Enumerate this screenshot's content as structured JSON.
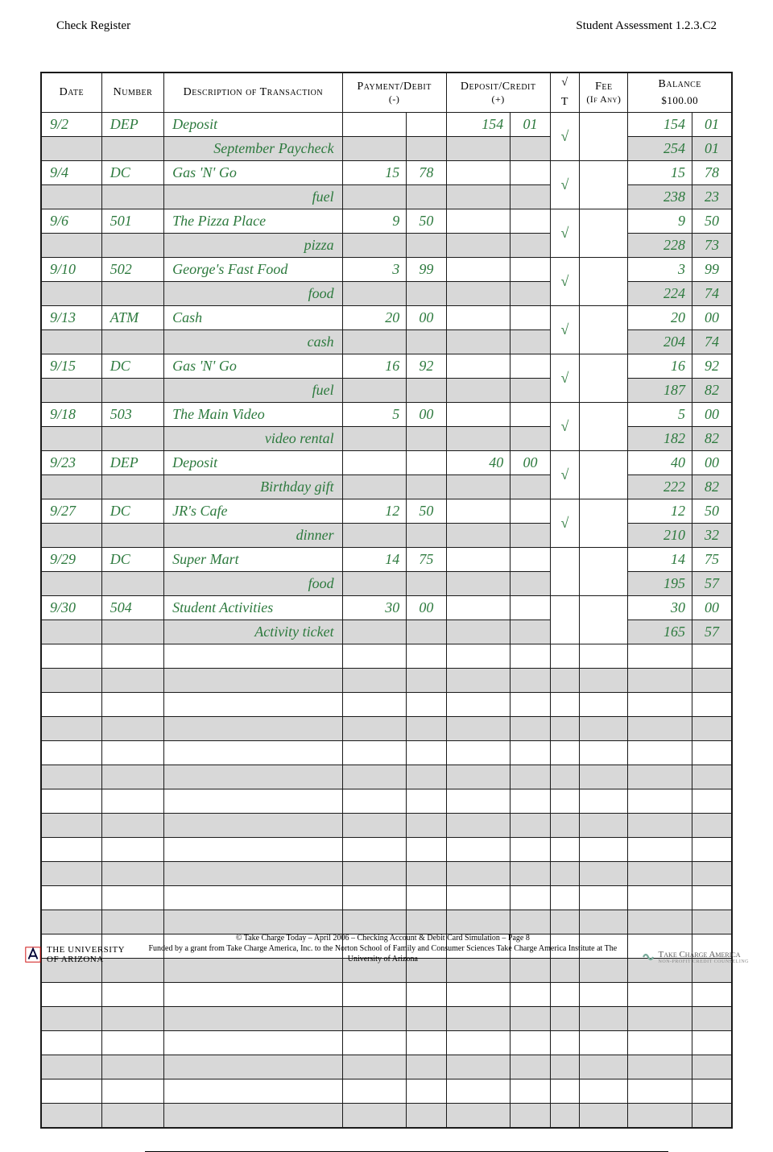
{
  "header": {
    "left": "Check Register",
    "right": "Student Assessment  1.2.3.C2"
  },
  "columns": {
    "date": "Date",
    "number": "Number",
    "desc": "Description of Transaction",
    "payment": "Payment/Debit",
    "payment_sub": "(-)",
    "deposit": "Deposit/Credit",
    "deposit_sub": "(+)",
    "check_top": "√",
    "check_bot": "T",
    "fee": "Fee",
    "fee_sub": "(If Any)",
    "balance": "Balance",
    "balance_start": "$100.00"
  },
  "entries": [
    {
      "date": "9/2",
      "num": "DEP",
      "desc": "Deposit",
      "pd": "",
      "pc": "",
      "dd": "154",
      "dc": "01",
      "ck": "√",
      "bd": "154",
      "bc": "01",
      "sub": "September Paycheck",
      "sbd": "254",
      "sbc": "01"
    },
    {
      "date": "9/4",
      "num": "DC",
      "desc": "Gas 'N' Go",
      "pd": "15",
      "pc": "78",
      "dd": "",
      "dc": "",
      "ck": "√",
      "bd": "15",
      "bc": "78",
      "sub": "fuel",
      "sbd": "238",
      "sbc": "23"
    },
    {
      "date": "9/6",
      "num": "501",
      "desc": "The Pizza Place",
      "pd": "9",
      "pc": "50",
      "dd": "",
      "dc": "",
      "ck": "√",
      "bd": "9",
      "bc": "50",
      "sub": "pizza",
      "sbd": "228",
      "sbc": "73"
    },
    {
      "date": "9/10",
      "num": "502",
      "desc": "George's Fast Food",
      "pd": "3",
      "pc": "99",
      "dd": "",
      "dc": "",
      "ck": "√",
      "bd": "3",
      "bc": "99",
      "sub": "food",
      "sbd": "224",
      "sbc": "74"
    },
    {
      "date": "9/13",
      "num": "ATM",
      "desc": "Cash",
      "pd": "20",
      "pc": "00",
      "dd": "",
      "dc": "",
      "ck": "√",
      "bd": "20",
      "bc": "00",
      "sub": "cash",
      "sbd": "204",
      "sbc": "74"
    },
    {
      "date": "9/15",
      "num": "DC",
      "desc": "Gas 'N' Go",
      "pd": "16",
      "pc": "92",
      "dd": "",
      "dc": "",
      "ck": "√",
      "bd": "16",
      "bc": "92",
      "sub": "fuel",
      "sbd": "187",
      "sbc": "82"
    },
    {
      "date": "9/18",
      "num": "503",
      "desc": "The Main Video",
      "pd": "5",
      "pc": "00",
      "dd": "",
      "dc": "",
      "ck": "√",
      "bd": "5",
      "bc": "00",
      "sub": "video rental",
      "sbd": "182",
      "sbc": "82"
    },
    {
      "date": "9/23",
      "num": "DEP",
      "desc": "Deposit",
      "pd": "",
      "pc": "",
      "dd": "40",
      "dc": "00",
      "ck": "√",
      "bd": "40",
      "bc": "00",
      "sub": "Birthday gift",
      "sbd": "222",
      "sbc": "82"
    },
    {
      "date": "9/27",
      "num": "DC",
      "desc": "JR's Cafe",
      "pd": "12",
      "pc": "50",
      "dd": "",
      "dc": "",
      "ck": "√",
      "bd": "12",
      "bc": "50",
      "sub": "dinner",
      "sbd": "210",
      "sbc": "32"
    },
    {
      "date": "9/29",
      "num": "DC",
      "desc": "Super Mart",
      "pd": "14",
      "pc": "75",
      "dd": "",
      "dc": "",
      "ck": "",
      "bd": "14",
      "bc": "75",
      "sub": "food",
      "sbd": "195",
      "sbc": "57"
    },
    {
      "date": "9/30",
      "num": "504",
      "desc": "Student Activities",
      "pd": "30",
      "pc": "00",
      "dd": "",
      "dc": "",
      "ck": "",
      "bd": "30",
      "bc": "00",
      "sub": "Activity ticket",
      "sbd": "165",
      "sbc": "57"
    }
  ],
  "blank_rows": 10,
  "footer": {
    "ua_line1": "THE UNIVERSITY",
    "ua_line2": "OF ARIZONA",
    "line1": "© Take Charge Today – April 2006 – Checking Account & Debit Card Simulation – Page 8",
    "line2": "Funded by a grant from Take Charge America, Inc. to the Norton School of Family and Consumer Sciences Take Charge America Institute at The University of Arizona",
    "tca": "Take Charge America",
    "tca_sub": "NON-PROFIT CREDIT COUNSELING"
  },
  "colors": {
    "entry": "#2d7a3e",
    "gray": "#d8d8d8",
    "border": "#1a1a1a"
  }
}
